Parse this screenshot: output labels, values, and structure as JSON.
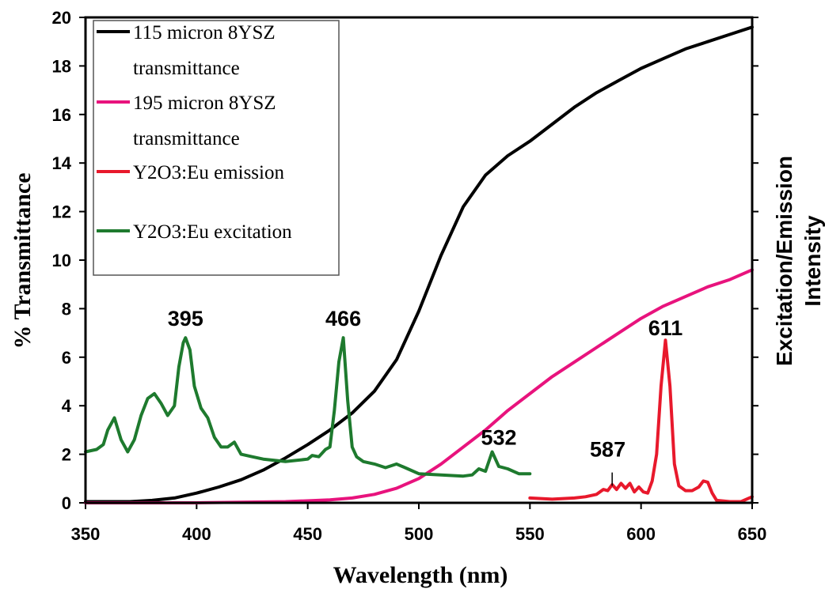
{
  "chart_data": {
    "type": "line",
    "xlabel": "Wavelength (nm)",
    "ylabel": "% Transmittance",
    "ylabel_right": [
      "Excitation/Emission",
      "Intensity"
    ],
    "xlim": [
      350,
      650
    ],
    "ylim": [
      0,
      20
    ],
    "x_ticks": [
      "350",
      "400",
      "450",
      "500",
      "550",
      "600",
      "650"
    ],
    "y_ticks": [
      "0",
      "2",
      "4",
      "6",
      "8",
      "10",
      "12",
      "14",
      "16",
      "18",
      "20"
    ],
    "grid": false,
    "legend_position": "top-left",
    "legend": [
      {
        "lines": [
          "115 micron 8YSZ",
          "transmittance"
        ],
        "color": "#000000"
      },
      {
        "lines": [
          "195 micron 8YSZ",
          "transmittance"
        ],
        "color": "#e8137d"
      },
      {
        "lines": [
          "Y2O3:Eu emission"
        ],
        "color": "#e8192c"
      },
      {
        "lines": [
          "Y2O3:Eu excitation"
        ],
        "color": "#1e7a2e"
      }
    ],
    "annotations": [
      {
        "text": "395",
        "x": 395,
        "y": 7.3
      },
      {
        "text": "466",
        "x": 466,
        "y": 7.3
      },
      {
        "text": "532",
        "x": 536,
        "y": 2.4
      },
      {
        "text": "587",
        "x": 585,
        "y": 1.9
      },
      {
        "text": "611",
        "x": 611,
        "y": 6.9
      }
    ],
    "series": [
      {
        "color": "#000000",
        "x": [
          350,
          370,
          380,
          390,
          400,
          410,
          420,
          430,
          440,
          450,
          460,
          470,
          480,
          490,
          500,
          510,
          520,
          530,
          540,
          550,
          560,
          570,
          580,
          590,
          600,
          610,
          620,
          630,
          640,
          650
        ],
        "y": [
          0.05,
          0.05,
          0.1,
          0.2,
          0.4,
          0.65,
          0.95,
          1.35,
          1.85,
          2.4,
          3.0,
          3.7,
          4.6,
          5.9,
          7.9,
          10.2,
          12.2,
          13.5,
          14.3,
          14.9,
          15.6,
          16.3,
          16.9,
          17.4,
          17.9,
          18.3,
          18.7,
          19.0,
          19.3,
          19.6
        ]
      },
      {
        "color": "#e8137d",
        "x": [
          350,
          400,
          440,
          460,
          470,
          480,
          490,
          500,
          510,
          520,
          530,
          540,
          550,
          560,
          570,
          580,
          590,
          600,
          610,
          620,
          630,
          640,
          650
        ],
        "y": [
          0,
          0,
          0.05,
          0.12,
          0.2,
          0.35,
          0.6,
          1.0,
          1.6,
          2.3,
          3.0,
          3.8,
          4.5,
          5.2,
          5.8,
          6.4,
          7.0,
          7.6,
          8.1,
          8.5,
          8.9,
          9.2,
          9.6
        ]
      },
      {
        "color": "#e8192c",
        "x": [
          550,
          560,
          570,
          575,
          580,
          583,
          585,
          587,
          589,
          591,
          593,
          595,
          597,
          599,
          601,
          603,
          605,
          607,
          609,
          611,
          613,
          615,
          617,
          620,
          623,
          626,
          628,
          630,
          632,
          634,
          640,
          645,
          650
        ],
        "y": [
          0.2,
          0.15,
          0.2,
          0.25,
          0.35,
          0.55,
          0.5,
          0.75,
          0.55,
          0.8,
          0.6,
          0.8,
          0.45,
          0.65,
          0.45,
          0.4,
          0.9,
          2.0,
          4.8,
          6.7,
          4.8,
          1.6,
          0.7,
          0.5,
          0.5,
          0.65,
          0.9,
          0.85,
          0.4,
          0.1,
          0.05,
          0.05,
          0.25
        ]
      },
      {
        "color": "#1e7a2e",
        "x": [
          350,
          355,
          358,
          360,
          363,
          366,
          369,
          372,
          375,
          378,
          381,
          384,
          387,
          390,
          392,
          394,
          395,
          397,
          399,
          402,
          405,
          408,
          411,
          414,
          417,
          420,
          425,
          430,
          440,
          445,
          450,
          452,
          455,
          458,
          460,
          462,
          464,
          466,
          468,
          470,
          472,
          475,
          480,
          485,
          490,
          495,
          500,
          510,
          520,
          524,
          527,
          530,
          533,
          536,
          540,
          545,
          550
        ],
        "y": [
          2.1,
          2.2,
          2.4,
          3.0,
          3.5,
          2.6,
          2.1,
          2.6,
          3.6,
          4.3,
          4.5,
          4.1,
          3.6,
          4.0,
          5.6,
          6.6,
          6.8,
          6.3,
          4.8,
          3.9,
          3.5,
          2.7,
          2.3,
          2.3,
          2.5,
          2.0,
          1.9,
          1.8,
          1.7,
          1.75,
          1.8,
          1.95,
          1.9,
          2.2,
          2.3,
          3.8,
          5.8,
          6.8,
          4.2,
          2.3,
          1.9,
          1.7,
          1.6,
          1.45,
          1.6,
          1.4,
          1.2,
          1.15,
          1.1,
          1.15,
          1.4,
          1.3,
          2.1,
          1.5,
          1.4,
          1.2,
          1.2
        ]
      }
    ]
  }
}
